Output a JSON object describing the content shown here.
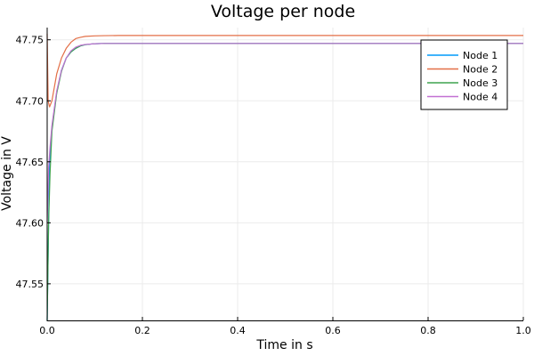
{
  "chart_data": {
    "type": "line",
    "title": "Voltage per node",
    "xlabel": "Time in s",
    "ylabel": "Voltage in V",
    "xlim": [
      0.0,
      1.0
    ],
    "ylim": [
      47.52,
      47.76
    ],
    "xticks": [
      0.0,
      0.2,
      0.4,
      0.6,
      0.8,
      1.0
    ],
    "xtick_labels": [
      "0.0",
      "0.2",
      "0.4",
      "0.6",
      "0.8",
      "1.0"
    ],
    "yticks": [
      47.55,
      47.6,
      47.65,
      47.7,
      47.75
    ],
    "ytick_labels": [
      "47.55",
      "47.60",
      "47.65",
      "47.70",
      "47.75"
    ],
    "grid": true,
    "legend_position": "top-right",
    "series": [
      {
        "name": "Node 1",
        "color": "#009AFA",
        "x": [
          0.0,
          0.005,
          0.01,
          0.02,
          0.03,
          0.04,
          0.05,
          0.06,
          0.07,
          0.08,
          0.1,
          0.12,
          0.15,
          0.2,
          0.3,
          0.5,
          0.7,
          1.0
        ],
        "y": [
          47.52,
          47.65,
          47.678,
          47.707,
          47.725,
          47.735,
          47.74,
          47.743,
          47.745,
          47.746,
          47.7468,
          47.747,
          47.747,
          47.747,
          47.747,
          47.747,
          47.747,
          47.747
        ]
      },
      {
        "name": "Node 2",
        "color": "#E36F47",
        "x": [
          0.0,
          0.002,
          0.005,
          0.01,
          0.02,
          0.03,
          0.04,
          0.05,
          0.06,
          0.07,
          0.08,
          0.1,
          0.12,
          0.15,
          0.2,
          0.3,
          0.5,
          0.7,
          1.0
        ],
        "y": [
          47.755,
          47.7,
          47.695,
          47.7,
          47.722,
          47.735,
          47.743,
          47.748,
          47.751,
          47.752,
          47.7528,
          47.7532,
          47.7534,
          47.7535,
          47.7535,
          47.7535,
          47.7535,
          47.7535,
          47.7535
        ]
      },
      {
        "name": "Node 3",
        "color": "#3EA44E",
        "x": [
          0.0,
          0.003,
          0.006,
          0.01,
          0.02,
          0.03,
          0.04,
          0.05,
          0.06,
          0.07,
          0.08,
          0.1,
          0.12,
          0.15,
          0.2,
          0.3,
          0.5,
          0.7,
          1.0
        ],
        "y": [
          47.52,
          47.6,
          47.64,
          47.675,
          47.706,
          47.724,
          47.735,
          47.74,
          47.743,
          47.745,
          47.746,
          47.7468,
          47.747,
          47.747,
          47.747,
          47.747,
          47.747,
          47.747,
          47.747
        ]
      },
      {
        "name": "Node 4",
        "color": "#C271D2",
        "x": [
          0.0,
          0.003,
          0.006,
          0.01,
          0.02,
          0.03,
          0.04,
          0.05,
          0.06,
          0.07,
          0.08,
          0.1,
          0.12,
          0.15,
          0.2,
          0.3,
          0.5,
          0.7,
          1.0
        ],
        "y": [
          47.6,
          47.645,
          47.662,
          47.68,
          47.708,
          47.725,
          47.735,
          47.741,
          47.744,
          47.7455,
          47.7462,
          47.7468,
          47.747,
          47.747,
          47.747,
          47.747,
          47.747,
          47.747,
          47.747
        ]
      }
    ]
  }
}
